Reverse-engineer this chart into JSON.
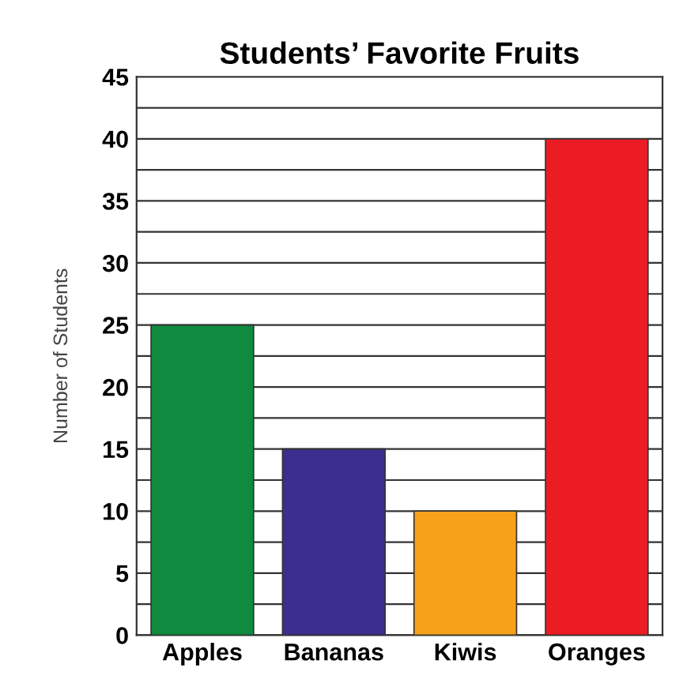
{
  "chart_data": {
    "type": "bar",
    "title": "Students’ Favorite Fruits",
    "ylabel": "Number of Students",
    "categories": [
      "Apples",
      "Bananas",
      "Kiwis",
      "Oranges"
    ],
    "values": [
      25,
      15,
      10,
      40
    ],
    "colors": [
      "#0f8a3e",
      "#3b2e8e",
      "#f7a11a",
      "#ec1c24"
    ],
    "ylim": [
      0,
      45
    ],
    "yticks": [
      0,
      {
        "value": 2.5,
        "label": null
      },
      5,
      {
        "value": 7.5,
        "label": null
      },
      10,
      {
        "value": 12.5,
        "label": null
      },
      15,
      {
        "value": 17.5,
        "label": null
      },
      20,
      {
        "value": 22.5,
        "label": null
      },
      25,
      {
        "value": 27.5,
        "label": null
      },
      30,
      {
        "value": 32.5,
        "label": null
      },
      35,
      {
        "value": 37.5,
        "label": null
      },
      40,
      {
        "value": 42.5,
        "label": null
      },
      45
    ],
    "grid": "y"
  }
}
